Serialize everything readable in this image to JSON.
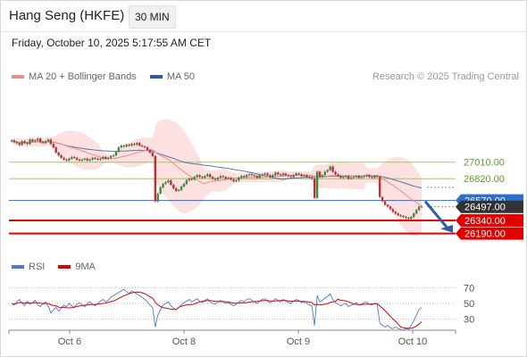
{
  "header": {
    "title": "Hang Seng (HKFE)",
    "timeframe": "30 MIN"
  },
  "datetime": "Friday, October 10, 2025 5:17:55 AM CET",
  "legend": {
    "items": [
      {
        "label": "MA 20 + Bollinger Bands",
        "color": "#f08a86"
      },
      {
        "label": "MA 50",
        "color": "#2f5b9a"
      }
    ],
    "credit": "Research © 2025 Trading Central"
  },
  "chart_data": {
    "type": "candlestick",
    "price_axis": {
      "min": 25950,
      "max": 27900
    },
    "levels": [
      {
        "label": "27010.00",
        "value": 27010,
        "kind": "target",
        "color": "#9cc86a"
      },
      {
        "label": "26820.00",
        "value": 26820,
        "kind": "target",
        "color": "#9cc86a"
      },
      {
        "label": "26570.00",
        "value": 26570,
        "kind": "pivot",
        "color": "#2a6fcf"
      },
      {
        "label": "26497.00",
        "value": 26497,
        "kind": "last",
        "color": "#333333"
      },
      {
        "label": "26340.00",
        "value": 26340,
        "kind": "support",
        "color": "#e10000"
      },
      {
        "label": "26190.00",
        "value": 26190,
        "kind": "support",
        "color": "#e10000"
      }
    ],
    "x_tick_labels": [
      "Oct 6",
      "Oct 8",
      "Oct 9",
      "Oct 10"
    ],
    "close_prices": [
      27260,
      27240,
      27230,
      27210,
      27250,
      27230,
      27220,
      27270,
      27250,
      27260,
      27280,
      27240,
      27230,
      27250,
      27270,
      27220,
      27180,
      27120,
      27090,
      27060,
      27040,
      27030,
      27050,
      27070,
      27060,
      27040,
      27030,
      27040,
      27050,
      27030,
      27040,
      27060,
      27050,
      27040,
      27050,
      27070,
      27050,
      27060,
      27080,
      27090,
      27130,
      27180,
      27200,
      27190,
      27210,
      27200,
      27220,
      27210,
      27230,
      27200,
      27190,
      27180,
      27150,
      27120,
      27080,
      26560,
      26650,
      26720,
      26760,
      26780,
      26800,
      26750,
      26710,
      26680,
      26690,
      26730,
      26760,
      26800,
      26820,
      26810,
      26840,
      26860,
      26840,
      26830,
      26850,
      26870,
      26840,
      26820,
      26810,
      26830,
      26850,
      26840,
      26820,
      26830,
      26810,
      26790,
      26800,
      26830,
      26850,
      26840,
      26860,
      26870,
      26860,
      26850,
      26830,
      26860,
      26870,
      26880,
      26860,
      26840,
      26860,
      26890,
      26870,
      26860,
      26880,
      26860,
      26850,
      26840,
      26860,
      26880,
      26870,
      26850,
      26860,
      26840,
      26830,
      26820,
      26600,
      26900,
      26840,
      26860,
      26900,
      26920,
      26960,
      26900,
      26870,
      26850,
      26830,
      26840,
      26850,
      26820,
      26830,
      26840,
      26850,
      26830,
      26840,
      26850,
      26860,
      26840,
      26830,
      26850,
      26840,
      26610,
      26560,
      26520,
      26500,
      26470,
      26440,
      26420,
      26400,
      26390,
      26380,
      26370,
      26360,
      26380,
      26420,
      26460,
      26500,
      26497
    ],
    "rsi": {
      "name": "RSI",
      "color": "#4a7bd8",
      "values": [
        50,
        48,
        52,
        55,
        50,
        47,
        53,
        49,
        51,
        54,
        48,
        46,
        50,
        52,
        47,
        38,
        42,
        45,
        40,
        44,
        48,
        46,
        50,
        47,
        45,
        49,
        51,
        48,
        46,
        50,
        52,
        49,
        47,
        50,
        53,
        55,
        52,
        54,
        58,
        60,
        62,
        64,
        66,
        68,
        65,
        63,
        66,
        64,
        62,
        60,
        58,
        55,
        52,
        48,
        45,
        20,
        35,
        42,
        48,
        50,
        52,
        47,
        44,
        42,
        45,
        48,
        51,
        53,
        55,
        52,
        54,
        56,
        53,
        51,
        54,
        56,
        52,
        50,
        49,
        52,
        54,
        52,
        50,
        51,
        49,
        47,
        49,
        52,
        54,
        52,
        55,
        56,
        54,
        52,
        50,
        53,
        55,
        56,
        53,
        51,
        53,
        56,
        54,
        52,
        55,
        53,
        51,
        50,
        53,
        55,
        54,
        51,
        52,
        50,
        48,
        47,
        22,
        60,
        52,
        54,
        57,
        59,
        62,
        55,
        51,
        49,
        47,
        49,
        50,
        46,
        48,
        49,
        51,
        48,
        49,
        51,
        52,
        49,
        48,
        50,
        49,
        25,
        22,
        20,
        22,
        19,
        18,
        20,
        18,
        17,
        16,
        18,
        17,
        22,
        28,
        35,
        42,
        45
      ],
      "levels": [
        70,
        50,
        30
      ],
      "tick_labels": [
        "70",
        "50",
        "30"
      ]
    },
    "rsi_ma": {
      "name": "9MA",
      "color": "#e10000"
    }
  },
  "rsi_legend": {
    "items": [
      {
        "label": "RSI",
        "color": "#4a7bd8"
      },
      {
        "label": "9MA",
        "color": "#e10000"
      }
    ]
  }
}
